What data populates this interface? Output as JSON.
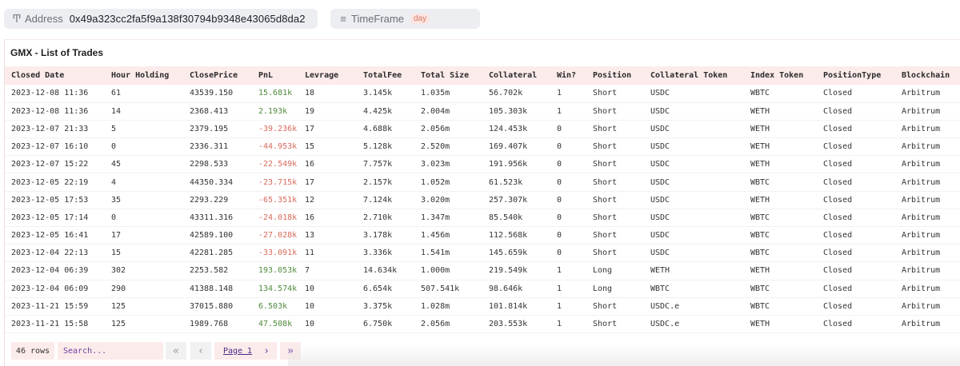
{
  "filters": {
    "address": {
      "icon": "text-type-icon",
      "label": "Address",
      "value": "0x49a323cc2fa5f9a138f30794b9348e43065d8da2"
    },
    "timeframe": {
      "icon": "list-icon",
      "label": "TimeFrame",
      "value": "day"
    }
  },
  "card": {
    "title": "GMX - List of Trades"
  },
  "table": {
    "columns": [
      "Closed Date",
      "Hour Holding",
      "ClosePrice",
      "PnL",
      "Levrage",
      "TotalFee",
      "Total Size",
      "Collateral",
      "Win?",
      "Position",
      "Collateral Token",
      "Index Token",
      "PositionType",
      "Blockchain"
    ],
    "rows": [
      [
        "2023-12-08 11:36",
        "61",
        "43539.150",
        "15.681k",
        "18",
        "3.145k",
        "1.035m",
        "56.702k",
        "1",
        "Short",
        "USDC",
        "WBTC",
        "Closed",
        "Arbitrum"
      ],
      [
        "2023-12-08 11:36",
        "14",
        "2368.413",
        "2.193k",
        "19",
        "4.425k",
        "2.004m",
        "105.303k",
        "1",
        "Short",
        "USDC",
        "WETH",
        "Closed",
        "Arbitrum"
      ],
      [
        "2023-12-07 21:33",
        "5",
        "2379.195",
        "-39.236k",
        "17",
        "4.688k",
        "2.056m",
        "124.453k",
        "0",
        "Short",
        "USDC",
        "WETH",
        "Closed",
        "Arbitrum"
      ],
      [
        "2023-12-07 16:10",
        "0",
        "2336.311",
        "-44.953k",
        "15",
        "5.128k",
        "2.520m",
        "169.407k",
        "0",
        "Short",
        "USDC",
        "WETH",
        "Closed",
        "Arbitrum"
      ],
      [
        "2023-12-07 15:22",
        "45",
        "2298.533",
        "-22.549k",
        "16",
        "7.757k",
        "3.023m",
        "191.956k",
        "0",
        "Short",
        "USDC",
        "WETH",
        "Closed",
        "Arbitrum"
      ],
      [
        "2023-12-05 22:19",
        "4",
        "44350.334",
        "-23.715k",
        "17",
        "2.157k",
        "1.052m",
        "61.523k",
        "0",
        "Short",
        "USDC",
        "WBTC",
        "Closed",
        "Arbitrum"
      ],
      [
        "2023-12-05 17:53",
        "35",
        "2293.229",
        "-65.351k",
        "12",
        "7.124k",
        "3.020m",
        "257.307k",
        "0",
        "Short",
        "USDC",
        "WETH",
        "Closed",
        "Arbitrum"
      ],
      [
        "2023-12-05 17:14",
        "0",
        "43311.316",
        "-24.018k",
        "16",
        "2.710k",
        "1.347m",
        "85.540k",
        "0",
        "Short",
        "USDC",
        "WBTC",
        "Closed",
        "Arbitrum"
      ],
      [
        "2023-12-05 16:41",
        "17",
        "42589.100",
        "-27.028k",
        "13",
        "3.178k",
        "1.456m",
        "112.568k",
        "0",
        "Short",
        "USDC",
        "WBTC",
        "Closed",
        "Arbitrum"
      ],
      [
        "2023-12-04 22:13",
        "15",
        "42281.285",
        "-33.091k",
        "11",
        "3.336k",
        "1.541m",
        "145.659k",
        "0",
        "Short",
        "USDC",
        "WBTC",
        "Closed",
        "Arbitrum"
      ],
      [
        "2023-12-04 06:39",
        "302",
        "2253.582",
        "193.053k",
        "7",
        "14.634k",
        "1.000m",
        "219.549k",
        "1",
        "Long",
        "WETH",
        "WETH",
        "Closed",
        "Arbitrum"
      ],
      [
        "2023-12-04 06:09",
        "290",
        "41388.148",
        "134.574k",
        "10",
        "6.654k",
        "507.541k",
        "98.646k",
        "1",
        "Long",
        "WBTC",
        "WBTC",
        "Closed",
        "Arbitrum"
      ],
      [
        "2023-11-21 15:59",
        "125",
        "37015.880",
        "6.503k",
        "10",
        "3.375k",
        "1.028m",
        "101.814k",
        "1",
        "Short",
        "USDC.e",
        "WBTC",
        "Closed",
        "Arbitrum"
      ],
      [
        "2023-11-21 15:58",
        "125",
        "1989.768",
        "47.508k",
        "10",
        "6.750k",
        "2.056m",
        "203.553k",
        "1",
        "Short",
        "USDC.e",
        "WETH",
        "Closed",
        "Arbitrum"
      ]
    ]
  },
  "pagination": {
    "row_count": "46 rows",
    "search_placeholder": "Search...",
    "first": "«",
    "prev": "‹",
    "page_label": "Page 1",
    "next": "›",
    "last": "»"
  },
  "colors": {
    "positive": "#4f8a3c",
    "negative": "#d86a5b",
    "header_bg": "#fcebeb",
    "accent": "#6b3fa0"
  }
}
